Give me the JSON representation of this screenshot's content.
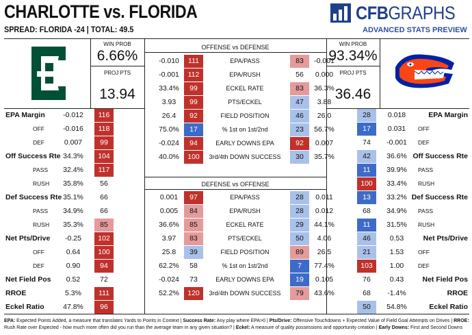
{
  "header": {
    "title": "CHARLOTTE vs. FLORIDA",
    "spread": "SPREAD: FLORIDA -24 | TOTAL: 49.5",
    "brand_bold": "CFB",
    "brand_light": "GRAPHS",
    "subtitle": "ADVANCED STATS PREVIEW"
  },
  "charlotte": {
    "win_prob_label": "WIN PROB",
    "win_prob": "6.66%",
    "proj_label": "PROJ PTS",
    "proj_pts": "13.94"
  },
  "florida": {
    "win_prob_label": "WIN PROB",
    "win_prob": "93.34%",
    "proj_label": "PROJ PTS",
    "proj_pts": "36.46"
  },
  "offense_defense": {
    "header": "OFFENSE vs DEFENSE",
    "rows": [
      {
        "lv": "-0.010",
        "lr": "111",
        "label": "EPA/PASS",
        "rr": "83",
        "rv": "-0.001"
      },
      {
        "lv": "-0.001",
        "lr": "112",
        "label": "EPA/RUSH",
        "rr": "56",
        "rv": "0.000"
      },
      {
        "lv": "33.4%",
        "lr": "99",
        "label": "ECKEL RATE",
        "rr": "83",
        "rv": "36.3%"
      },
      {
        "lv": "3.93",
        "lr": "99",
        "label": "PTS/ECKEL",
        "rr": "47",
        "rv": "3.88"
      },
      {
        "lv": "26.4",
        "lr": "92",
        "label": "FIELD POSITION",
        "rr": "46",
        "rv": "26.0"
      },
      {
        "lv": "75.0%",
        "lr": "17",
        "label": "% 1st on 1st/2nd",
        "rr": "23",
        "rv": "56.7%"
      },
      {
        "lv": "-0.024",
        "lr": "94",
        "label": "EARLY DOWNS EPA",
        "rr": "92",
        "rv": "0.007"
      },
      {
        "lv": "40.0%",
        "lr": "100",
        "label": "3rd/4th DOWN SUCCESS",
        "rr": "30",
        "rv": "35.7%"
      }
    ]
  },
  "defense_offense": {
    "header": "DEFENSE vs OFFENSE",
    "rows": [
      {
        "lv": "0.001",
        "lr": "97",
        "label": "EPA/PASS",
        "rr": "28",
        "rv": "0.011"
      },
      {
        "lv": "0.005",
        "lr": "84",
        "label": "EPA/RUSH",
        "rr": "28",
        "rv": "0.012"
      },
      {
        "lv": "36.6%",
        "lr": "85",
        "label": "ECKEL RATE",
        "rr": "29",
        "rv": "44.1%"
      },
      {
        "lv": "3.97",
        "lr": "83",
        "label": "PTS/ECKEL",
        "rr": "50",
        "rv": "4.06"
      },
      {
        "lv": "25.8",
        "lr": "39",
        "label": "FIELD POSITION",
        "rr": "89",
        "rv": "26.5"
      },
      {
        "lv": "62.2%",
        "lr": "58",
        "label": "% 1st on 1st/2nd",
        "rr": "7",
        "rv": "77.4%"
      },
      {
        "lv": "-0.024",
        "lr": "73",
        "label": "EARLY DOWNS EPA",
        "rr": "19",
        "rv": "0.105"
      },
      {
        "lv": "52.2%",
        "lr": "120",
        "label": "3rd/4th DOWN SUCCESS",
        "rr": "79",
        "rv": "43.6%"
      }
    ]
  },
  "left_stats": [
    {
      "label": "EPA Margin",
      "sub": false,
      "val": "-0.012",
      "rank": "116"
    },
    {
      "label": "OFF",
      "sub": true,
      "val": "-0.016",
      "rank": "118"
    },
    {
      "label": "DEF",
      "sub": true,
      "val": "0.007",
      "rank": "99"
    },
    {
      "label": "Off Success Rte",
      "sub": false,
      "val": "34.3%",
      "rank": "104"
    },
    {
      "label": "PASS",
      "sub": true,
      "val": "32.4%",
      "rank": "117"
    },
    {
      "label": "RUSH",
      "sub": true,
      "val": "35.8%",
      "rank": "56"
    },
    {
      "label": "Def Success Rte",
      "sub": false,
      "val": "35.1%",
      "rank": "66"
    },
    {
      "label": "PASS",
      "sub": true,
      "val": "34.9%",
      "rank": "66"
    },
    {
      "label": "RUSH",
      "sub": true,
      "val": "35.3%",
      "rank": "85"
    },
    {
      "label": "Net Pts/Drive",
      "sub": false,
      "val": "-0.25",
      "rank": "102"
    },
    {
      "label": "OFF",
      "sub": true,
      "val": "0.64",
      "rank": "100"
    },
    {
      "label": "DEF",
      "sub": true,
      "val": "0.90",
      "rank": "94"
    },
    {
      "label": "Net Field Pos",
      "sub": false,
      "val": "0.52",
      "rank": "72"
    },
    {
      "label": "RROE",
      "sub": false,
      "val": "5.3%",
      "rank": "111"
    },
    {
      "label": "Eckel Ratio",
      "sub": false,
      "val": "47.8%",
      "rank": "96"
    }
  ],
  "right_stats": [
    {
      "label": "EPA Margin",
      "sub": false,
      "val": "0.018",
      "rank": "28"
    },
    {
      "label": "OFF",
      "sub": true,
      "val": "0.031",
      "rank": "17"
    },
    {
      "label": "DEF",
      "sub": true,
      "val": "-0.001",
      "rank": "74"
    },
    {
      "label": "Off Success Rte",
      "sub": false,
      "val": "36.6%",
      "rank": "42"
    },
    {
      "label": "PASS",
      "sub": true,
      "val": "39.9%",
      "rank": "11"
    },
    {
      "label": "RUSH",
      "sub": true,
      "val": "33.4%",
      "rank": "100"
    },
    {
      "label": "Def Success Rte",
      "sub": false,
      "val": "33.2%",
      "rank": "13"
    },
    {
      "label": "PASS",
      "sub": true,
      "val": "34.9%",
      "rank": "68"
    },
    {
      "label": "RUSH",
      "sub": true,
      "val": "31.5%",
      "rank": "11"
    },
    {
      "label": "Net Pts/Drive",
      "sub": false,
      "val": "0.53",
      "rank": "46"
    },
    {
      "label": "OFF",
      "sub": true,
      "val": "1.53",
      "rank": "21"
    },
    {
      "label": "DEF",
      "sub": true,
      "val": "1.00",
      "rank": "103"
    },
    {
      "label": "Net Field Pos",
      "sub": false,
      "val": "0.43",
      "rank": "76"
    },
    {
      "label": "RROE",
      "sub": false,
      "val": "-1.4%",
      "rank": "68"
    },
    {
      "label": "Eckel Ratio",
      "sub": false,
      "val": "54.8%",
      "rank": "50"
    }
  ],
  "footer": {
    "items": [
      {
        "term": "EPA:",
        "desc": " Expected Points Added, a measure that translates Yards to Points in Context | "
      },
      {
        "term": "Success Rate:",
        "desc": " Any play where EPA>0 | "
      },
      {
        "term": "Pts/Drive:",
        "desc": " Offensive Touchdowns + Expected Value of Field Goal Attempts on Drives | "
      },
      {
        "term": "RROE:",
        "desc": " Rush Rate over Expected - how much more often did you run than the average team in any given situation? | "
      },
      {
        "term": "Eckel:",
        "desc": " A measure of quality possessions and opportunity creation | "
      },
      {
        "term": "Early Downs:",
        "desc": " First and Second Downs"
      }
    ]
  }
}
